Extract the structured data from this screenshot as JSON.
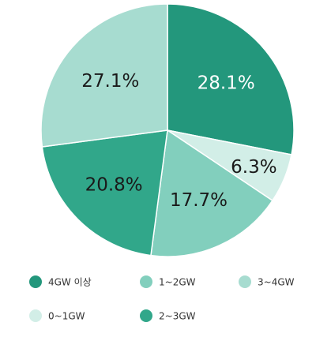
{
  "chart_data": {
    "type": "pie",
    "categories": [
      "4GW 이상",
      "0~1GW",
      "1~2GW",
      "2~3GW",
      "3~4GW"
    ],
    "values": [
      28.1,
      6.3,
      17.7,
      20.8,
      27.1
    ],
    "value_labels": [
      "28.1%",
      "6.3%",
      "17.7%",
      "20.8%",
      "27.1%"
    ],
    "colors": [
      "#23977c",
      "#d2eee7",
      "#82cfbd",
      "#31a78a",
      "#a7dcd0"
    ]
  }
}
